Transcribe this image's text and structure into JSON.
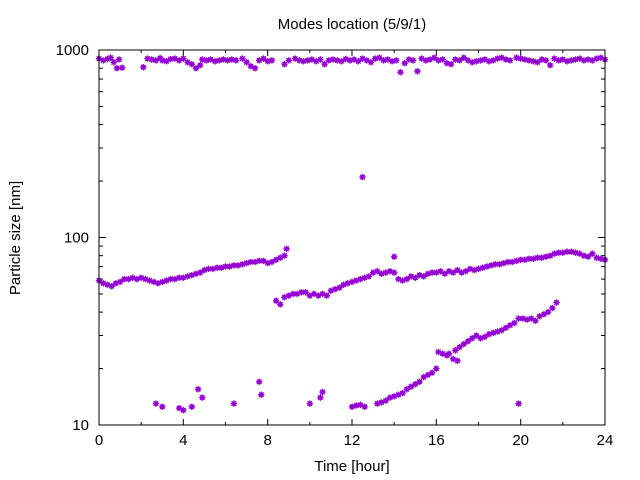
{
  "chart_data": {
    "type": "scatter",
    "title": "Modes location (5/9/1)",
    "xlabel": "Time [hour]",
    "ylabel": "Particle size [nm]",
    "xlim": [
      0,
      24
    ],
    "ylim": [
      10,
      1000
    ],
    "yscale": "log",
    "x_ticks": [
      "0",
      "4",
      "8",
      "12",
      "16",
      "20",
      "24"
    ],
    "x_tick_values": [
      0,
      4,
      8,
      12,
      16,
      20,
      24
    ],
    "y_ticks": [
      "10",
      "100",
      "1000"
    ],
    "y_tick_values": [
      10,
      100,
      1000
    ],
    "grid": false,
    "marker_color": "#9400d3",
    "series": [
      {
        "points": [
          [
            0.0,
            900
          ],
          [
            0.2,
            880
          ],
          [
            0.4,
            895
          ],
          [
            0.55,
            910
          ],
          [
            0.7,
            860
          ],
          [
            0.85,
            800
          ],
          [
            0.95,
            890
          ],
          [
            1.1,
            805
          ],
          [
            2.1,
            810
          ],
          [
            2.3,
            900
          ],
          [
            2.5,
            890
          ],
          [
            2.7,
            880
          ],
          [
            2.9,
            905
          ],
          [
            3.0,
            880
          ],
          [
            3.2,
            870
          ],
          [
            3.4,
            895
          ],
          [
            3.6,
            900
          ],
          [
            3.8,
            880
          ],
          [
            4.0,
            900
          ],
          [
            4.2,
            860
          ],
          [
            4.4,
            840
          ],
          [
            4.6,
            800
          ],
          [
            4.8,
            830
          ],
          [
            4.9,
            890
          ],
          [
            5.1,
            880
          ],
          [
            5.3,
            890
          ],
          [
            5.5,
            870
          ],
          [
            5.7,
            880
          ],
          [
            5.9,
            890
          ],
          [
            6.1,
            880
          ],
          [
            6.3,
            890
          ],
          [
            6.5,
            880
          ],
          [
            6.8,
            900
          ],
          [
            7.0,
            860
          ],
          [
            7.2,
            820
          ],
          [
            7.4,
            800
          ],
          [
            7.6,
            880
          ],
          [
            7.8,
            900
          ],
          [
            8.0,
            870
          ],
          [
            8.2,
            880
          ],
          [
            8.8,
            840
          ],
          [
            9.0,
            880
          ],
          [
            9.3,
            900
          ],
          [
            9.5,
            880
          ],
          [
            9.7,
            870
          ],
          [
            9.9,
            880
          ],
          [
            10.1,
            890
          ],
          [
            10.3,
            870
          ],
          [
            10.5,
            890
          ],
          [
            10.7,
            840
          ],
          [
            10.9,
            880
          ],
          [
            11.1,
            890
          ],
          [
            11.3,
            880
          ],
          [
            11.5,
            870
          ],
          [
            11.7,
            895
          ],
          [
            11.9,
            880
          ],
          [
            12.1,
            890
          ],
          [
            12.3,
            870
          ],
          [
            12.5,
            900
          ],
          [
            12.7,
            880
          ],
          [
            12.9,
            860
          ],
          [
            13.1,
            900
          ],
          [
            13.3,
            910
          ],
          [
            13.5,
            880
          ],
          [
            13.7,
            890
          ],
          [
            13.9,
            870
          ],
          [
            14.1,
            880
          ],
          [
            14.3,
            760
          ],
          [
            14.5,
            850
          ],
          [
            14.7,
            890
          ],
          [
            14.9,
            880
          ],
          [
            15.1,
            770
          ],
          [
            15.3,
            900
          ],
          [
            15.5,
            880
          ],
          [
            15.7,
            890
          ],
          [
            15.9,
            910
          ],
          [
            16.1,
            880
          ],
          [
            16.3,
            890
          ],
          [
            16.5,
            850
          ],
          [
            16.7,
            840
          ],
          [
            16.9,
            890
          ],
          [
            17.1,
            880
          ],
          [
            17.3,
            910
          ],
          [
            17.5,
            880
          ],
          [
            17.7,
            860
          ],
          [
            17.9,
            870
          ],
          [
            18.1,
            880
          ],
          [
            18.3,
            890
          ],
          [
            18.5,
            870
          ],
          [
            18.7,
            880
          ],
          [
            18.9,
            900
          ],
          [
            19.1,
            910
          ],
          [
            19.3,
            890
          ],
          [
            19.5,
            880
          ],
          [
            19.8,
            910
          ],
          [
            20.0,
            900
          ],
          [
            20.2,
            890
          ],
          [
            20.4,
            880
          ],
          [
            20.6,
            870
          ],
          [
            20.8,
            860
          ],
          [
            21.0,
            890
          ],
          [
            21.2,
            880
          ],
          [
            21.4,
            830
          ],
          [
            21.6,
            900
          ],
          [
            21.8,
            880
          ],
          [
            22.0,
            890
          ],
          [
            22.2,
            870
          ],
          [
            22.4,
            880
          ],
          [
            22.6,
            890
          ],
          [
            22.8,
            900
          ],
          [
            23.0,
            880
          ],
          [
            23.2,
            890
          ],
          [
            23.4,
            880
          ],
          [
            23.6,
            900
          ],
          [
            23.8,
            910
          ],
          [
            24.0,
            890
          ],
          [
            12.5,
            210
          ],
          [
            14.0,
            79
          ],
          [
            8.9,
            87
          ],
          [
            0.0,
            59
          ],
          [
            0.2,
            57
          ],
          [
            0.4,
            56
          ],
          [
            0.6,
            55
          ],
          [
            0.8,
            57
          ],
          [
            1.0,
            58
          ],
          [
            1.2,
            60
          ],
          [
            1.4,
            60
          ],
          [
            1.6,
            61
          ],
          [
            1.8,
            60
          ],
          [
            2.0,
            61
          ],
          [
            2.2,
            60
          ],
          [
            2.4,
            59
          ],
          [
            2.6,
            58
          ],
          [
            2.8,
            57
          ],
          [
            3.0,
            58
          ],
          [
            3.2,
            59
          ],
          [
            3.4,
            60
          ],
          [
            3.6,
            60
          ],
          [
            3.8,
            61
          ],
          [
            4.0,
            61
          ],
          [
            4.2,
            62
          ],
          [
            4.4,
            63
          ],
          [
            4.6,
            64
          ],
          [
            4.8,
            65
          ],
          [
            5.0,
            67
          ],
          [
            5.2,
            68
          ],
          [
            5.4,
            68
          ],
          [
            5.6,
            69
          ],
          [
            5.8,
            69
          ],
          [
            6.0,
            70
          ],
          [
            6.2,
            70
          ],
          [
            6.4,
            71
          ],
          [
            6.6,
            71
          ],
          [
            6.8,
            72
          ],
          [
            7.0,
            73
          ],
          [
            7.2,
            74
          ],
          [
            7.4,
            74
          ],
          [
            7.6,
            75
          ],
          [
            7.8,
            75
          ],
          [
            8.0,
            73
          ],
          [
            8.2,
            74
          ],
          [
            8.4,
            76
          ],
          [
            8.6,
            78
          ],
          [
            8.8,
            80
          ],
          [
            8.4,
            46
          ],
          [
            8.6,
            44
          ],
          [
            8.8,
            48
          ],
          [
            9.0,
            49
          ],
          [
            9.2,
            50
          ],
          [
            9.4,
            50
          ],
          [
            9.6,
            51
          ],
          [
            9.8,
            51
          ],
          [
            10.0,
            49
          ],
          [
            10.2,
            50
          ],
          [
            10.4,
            49
          ],
          [
            10.6,
            50
          ],
          [
            10.8,
            49
          ],
          [
            11.0,
            52
          ],
          [
            11.2,
            53
          ],
          [
            11.4,
            54
          ],
          [
            11.6,
            56
          ],
          [
            11.8,
            57
          ],
          [
            12.0,
            58
          ],
          [
            12.2,
            59
          ],
          [
            12.4,
            60
          ],
          [
            12.6,
            61
          ],
          [
            12.8,
            62
          ],
          [
            13.0,
            65
          ],
          [
            13.2,
            66
          ],
          [
            13.4,
            64
          ],
          [
            13.6,
            65
          ],
          [
            13.8,
            66
          ],
          [
            14.0,
            65
          ],
          [
            14.2,
            60
          ],
          [
            14.4,
            59
          ],
          [
            14.6,
            60
          ],
          [
            14.8,
            62
          ],
          [
            15.0,
            61
          ],
          [
            15.2,
            63
          ],
          [
            15.4,
            62
          ],
          [
            15.6,
            64
          ],
          [
            15.8,
            65
          ],
          [
            16.0,
            65
          ],
          [
            16.2,
            66
          ],
          [
            16.4,
            64
          ],
          [
            16.6,
            66
          ],
          [
            16.8,
            65
          ],
          [
            17.0,
            67
          ],
          [
            17.2,
            65
          ],
          [
            17.4,
            66
          ],
          [
            17.6,
            68
          ],
          [
            17.8,
            67
          ],
          [
            18.0,
            68
          ],
          [
            18.2,
            69
          ],
          [
            18.4,
            70
          ],
          [
            18.6,
            71
          ],
          [
            18.8,
            72
          ],
          [
            19.0,
            72
          ],
          [
            19.2,
            73
          ],
          [
            19.4,
            74
          ],
          [
            19.6,
            74
          ],
          [
            19.8,
            75
          ],
          [
            20.0,
            76
          ],
          [
            20.2,
            76
          ],
          [
            20.4,
            77
          ],
          [
            20.6,
            77
          ],
          [
            20.8,
            78
          ],
          [
            21.0,
            78
          ],
          [
            21.2,
            79
          ],
          [
            21.4,
            80
          ],
          [
            21.6,
            82
          ],
          [
            21.8,
            83
          ],
          [
            22.0,
            83
          ],
          [
            22.2,
            84
          ],
          [
            22.4,
            84
          ],
          [
            22.6,
            83
          ],
          [
            22.8,
            82
          ],
          [
            23.0,
            80
          ],
          [
            23.2,
            79
          ],
          [
            23.4,
            82
          ],
          [
            23.6,
            78
          ],
          [
            23.8,
            77
          ],
          [
            24.0,
            76
          ],
          [
            2.7,
            13
          ],
          [
            3.0,
            12.5
          ],
          [
            3.8,
            12.3
          ],
          [
            4.0,
            12
          ],
          [
            4.4,
            12.5
          ],
          [
            4.7,
            15.5
          ],
          [
            4.9,
            14
          ],
          [
            6.4,
            13
          ],
          [
            7.6,
            17
          ],
          [
            7.7,
            14.5
          ],
          [
            10.0,
            13
          ],
          [
            10.5,
            14
          ],
          [
            10.6,
            15
          ],
          [
            12.0,
            12.5
          ],
          [
            12.2,
            12.7
          ],
          [
            12.4,
            12.8
          ],
          [
            12.6,
            12.5
          ],
          [
            13.2,
            13
          ],
          [
            13.4,
            13.2
          ],
          [
            13.6,
            13.5
          ],
          [
            13.8,
            14
          ],
          [
            14.0,
            14.2
          ],
          [
            14.2,
            14.5
          ],
          [
            14.4,
            14.8
          ],
          [
            14.6,
            15.5
          ],
          [
            14.8,
            16
          ],
          [
            15.0,
            16.5
          ],
          [
            15.2,
            17
          ],
          [
            15.4,
            18
          ],
          [
            15.6,
            18.5
          ],
          [
            15.8,
            19
          ],
          [
            16.0,
            20
          ],
          [
            16.1,
            24.5
          ],
          [
            16.3,
            24
          ],
          [
            16.5,
            23.5
          ],
          [
            16.6,
            24
          ],
          [
            16.8,
            22.5
          ],
          [
            17.0,
            22
          ],
          [
            16.9,
            25
          ],
          [
            17.1,
            26
          ],
          [
            17.3,
            27
          ],
          [
            17.5,
            28
          ],
          [
            17.7,
            29
          ],
          [
            17.9,
            30
          ],
          [
            18.1,
            29
          ],
          [
            18.3,
            29.5
          ],
          [
            18.5,
            30.5
          ],
          [
            18.7,
            31
          ],
          [
            18.9,
            31.5
          ],
          [
            19.1,
            32
          ],
          [
            19.3,
            33
          ],
          [
            19.5,
            34
          ],
          [
            19.7,
            35
          ],
          [
            19.9,
            37
          ],
          [
            20.1,
            37
          ],
          [
            20.3,
            36.5
          ],
          [
            20.5,
            37
          ],
          [
            20.7,
            36
          ],
          [
            20.9,
            38
          ],
          [
            21.1,
            39
          ],
          [
            21.3,
            40
          ],
          [
            21.5,
            42
          ],
          [
            21.7,
            45
          ],
          [
            19.9,
            13
          ]
        ]
      }
    ]
  }
}
